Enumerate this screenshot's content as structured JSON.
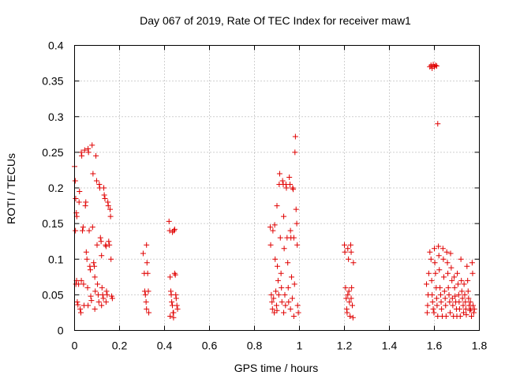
{
  "chart_data": {
    "type": "scatter",
    "title": "Day 067 of 2019, Rate Of TEC Index for receiver maw1",
    "xlabel": "GPS time / hours",
    "ylabel": "ROTI / TECUs",
    "xlim": [
      0,
      1.8
    ],
    "ylim": [
      0,
      0.4
    ],
    "grid": true,
    "marker": "plus",
    "color": "#e00000",
    "x_ticks": [
      {
        "v": 0,
        "label": "0"
      },
      {
        "v": 0.2,
        "label": "0.2"
      },
      {
        "v": 0.4,
        "label": "0.4"
      },
      {
        "v": 0.6,
        "label": "0.6"
      },
      {
        "v": 0.8,
        "label": "0.8"
      },
      {
        "v": 1.0,
        "label": "1"
      },
      {
        "v": 1.2,
        "label": "1.2"
      },
      {
        "v": 1.4,
        "label": "1.4"
      },
      {
        "v": 1.6,
        "label": "1.6"
      },
      {
        "v": 1.8,
        "label": "1.8"
      }
    ],
    "y_ticks": [
      {
        "v": 0,
        "label": "0"
      },
      {
        "v": 0.05,
        "label": "0.05"
      },
      {
        "v": 0.1,
        "label": "0.1"
      },
      {
        "v": 0.15,
        "label": "0.15"
      },
      {
        "v": 0.2,
        "label": "0.2"
      },
      {
        "v": 0.25,
        "label": "0.25"
      },
      {
        "v": 0.3,
        "label": "0.3"
      },
      {
        "v": 0.35,
        "label": "0.35"
      },
      {
        "v": 0.4,
        "label": "0.4"
      }
    ],
    "points": [
      [
        0.0,
        0.23
      ],
      [
        0.003,
        0.21
      ],
      [
        0.005,
        0.185
      ],
      [
        0.008,
        0.165
      ],
      [
        0.01,
        0.16
      ],
      [
        0.004,
        0.14
      ],
      [
        0.006,
        0.065
      ],
      [
        0.009,
        0.07
      ],
      [
        0.012,
        0.04
      ],
      [
        0.015,
        0.036
      ],
      [
        0.018,
        0.065
      ],
      [
        0.02,
        0.18
      ],
      [
        0.022,
        0.195
      ],
      [
        0.025,
        0.03
      ],
      [
        0.028,
        0.025
      ],
      [
        0.03,
        0.25
      ],
      [
        0.032,
        0.245
      ],
      [
        0.035,
        0.14
      ],
      [
        0.038,
        0.145
      ],
      [
        0.04,
        0.065
      ],
      [
        0.042,
        0.035
      ],
      [
        0.045,
        0.253
      ],
      [
        0.048,
        0.175
      ],
      [
        0.05,
        0.18
      ],
      [
        0.052,
        0.11
      ],
      [
        0.055,
        0.1
      ],
      [
        0.058,
        0.06
      ],
      [
        0.06,
        0.255
      ],
      [
        0.062,
        0.25
      ],
      [
        0.065,
        0.14
      ],
      [
        0.068,
        0.09
      ],
      [
        0.07,
        0.085
      ],
      [
        0.072,
        0.048
      ],
      [
        0.075,
        0.042
      ],
      [
        0.078,
        0.26
      ],
      [
        0.08,
        0.145
      ],
      [
        0.082,
        0.22
      ],
      [
        0.085,
        0.095
      ],
      [
        0.088,
        0.09
      ],
      [
        0.09,
        0.075
      ],
      [
        0.092,
        0.055
      ],
      [
        0.095,
        0.245
      ],
      [
        0.098,
        0.21
      ],
      [
        0.1,
        0.12
      ],
      [
        0.102,
        0.065
      ],
      [
        0.105,
        0.05
      ],
      [
        0.108,
        0.04
      ],
      [
        0.11,
        0.205
      ],
      [
        0.112,
        0.2
      ],
      [
        0.115,
        0.13
      ],
      [
        0.118,
        0.125
      ],
      [
        0.12,
        0.105
      ],
      [
        0.122,
        0.06
      ],
      [
        0.125,
        0.05
      ],
      [
        0.128,
        0.045
      ],
      [
        0.13,
        0.2
      ],
      [
        0.132,
        0.19
      ],
      [
        0.135,
        0.185
      ],
      [
        0.138,
        0.12
      ],
      [
        0.14,
        0.118
      ],
      [
        0.142,
        0.055
      ],
      [
        0.145,
        0.05
      ],
      [
        0.148,
        0.18
      ],
      [
        0.15,
        0.175
      ],
      [
        0.152,
        0.125
      ],
      [
        0.155,
        0.12
      ],
      [
        0.158,
        0.17
      ],
      [
        0.16,
        0.16
      ],
      [
        0.162,
        0.1
      ],
      [
        0.165,
        0.048
      ],
      [
        0.168,
        0.045
      ],
      [
        0.03,
        0.07
      ],
      [
        0.06,
        0.035
      ],
      [
        0.09,
        0.03
      ],
      [
        0.12,
        0.035
      ],
      [
        0.14,
        0.04
      ],
      [
        0.305,
        0.108
      ],
      [
        0.31,
        0.08
      ],
      [
        0.312,
        0.055
      ],
      [
        0.315,
        0.05
      ],
      [
        0.318,
        0.04
      ],
      [
        0.32,
        0.12
      ],
      [
        0.322,
        0.095
      ],
      [
        0.325,
        0.08
      ],
      [
        0.328,
        0.055
      ],
      [
        0.33,
        0.025
      ],
      [
        0.32,
        0.03
      ],
      [
        0.42,
        0.153
      ],
      [
        0.423,
        0.14
      ],
      [
        0.425,
        0.075
      ],
      [
        0.428,
        0.055
      ],
      [
        0.43,
        0.05
      ],
      [
        0.432,
        0.04
      ],
      [
        0.435,
        0.035
      ],
      [
        0.438,
        0.025
      ],
      [
        0.44,
        0.018
      ],
      [
        0.442,
        0.14
      ],
      [
        0.445,
        0.08
      ],
      [
        0.448,
        0.078
      ],
      [
        0.45,
        0.05
      ],
      [
        0.452,
        0.045
      ],
      [
        0.455,
        0.035
      ],
      [
        0.458,
        0.03
      ],
      [
        0.44,
        0.025
      ],
      [
        0.425,
        0.02
      ],
      [
        0.435,
        0.138
      ],
      [
        0.445,
        0.142
      ],
      [
        0.87,
        0.145
      ],
      [
        0.872,
        0.12
      ],
      [
        0.875,
        0.05
      ],
      [
        0.878,
        0.04
      ],
      [
        0.88,
        0.03
      ],
      [
        0.882,
        0.14
      ],
      [
        0.885,
        0.045
      ],
      [
        0.888,
        0.025
      ],
      [
        0.89,
        0.148
      ],
      [
        0.892,
        0.1
      ],
      [
        0.895,
        0.055
      ],
      [
        0.898,
        0.035
      ],
      [
        0.9,
        0.175
      ],
      [
        0.902,
        0.09
      ],
      [
        0.905,
        0.07
      ],
      [
        0.908,
        0.05
      ],
      [
        0.91,
        0.205
      ],
      [
        0.912,
        0.22
      ],
      [
        0.915,
        0.13
      ],
      [
        0.918,
        0.08
      ],
      [
        0.92,
        0.06
      ],
      [
        0.922,
        0.04
      ],
      [
        0.925,
        0.21
      ],
      [
        0.928,
        0.205
      ],
      [
        0.93,
        0.16
      ],
      [
        0.932,
        0.115
      ],
      [
        0.935,
        0.05
      ],
      [
        0.938,
        0.035
      ],
      [
        0.94,
        0.205
      ],
      [
        0.942,
        0.2
      ],
      [
        0.945,
        0.13
      ],
      [
        0.948,
        0.095
      ],
      [
        0.95,
        0.06
      ],
      [
        0.952,
        0.04
      ],
      [
        0.955,
        0.215
      ],
      [
        0.958,
        0.205
      ],
      [
        0.96,
        0.14
      ],
      [
        0.962,
        0.13
      ],
      [
        0.965,
        0.075
      ],
      [
        0.968,
        0.045
      ],
      [
        0.97,
        0.2
      ],
      [
        0.972,
        0.198
      ],
      [
        0.975,
        0.13
      ],
      [
        0.978,
        0.065
      ],
      [
        0.98,
        0.25
      ],
      [
        0.982,
        0.272
      ],
      [
        0.985,
        0.17
      ],
      [
        0.988,
        0.15
      ],
      [
        0.99,
        0.12
      ],
      [
        0.992,
        0.035
      ],
      [
        0.995,
        0.025
      ],
      [
        0.96,
        0.03
      ],
      [
        0.93,
        0.025
      ],
      [
        0.9,
        0.028
      ],
      [
        0.975,
        0.02
      ],
      [
        1.2,
        0.12
      ],
      [
        1.202,
        0.11
      ],
      [
        1.205,
        0.06
      ],
      [
        1.208,
        0.045
      ],
      [
        1.21,
        0.03
      ],
      [
        1.212,
        0.025
      ],
      [
        1.215,
        0.115
      ],
      [
        1.218,
        0.1
      ],
      [
        1.22,
        0.055
      ],
      [
        1.222,
        0.04
      ],
      [
        1.225,
        0.02
      ],
      [
        1.228,
        0.12
      ],
      [
        1.23,
        0.11
      ],
      [
        1.232,
        0.06
      ],
      [
        1.235,
        0.035
      ],
      [
        1.238,
        0.018
      ],
      [
        1.24,
        0.095
      ],
      [
        1.215,
        0.05
      ],
      [
        1.23,
        0.045
      ],
      [
        1.58,
        0.37
      ],
      [
        1.585,
        0.372
      ],
      [
        1.59,
        0.368
      ],
      [
        1.595,
        0.373
      ],
      [
        1.6,
        0.37
      ],
      [
        1.605,
        0.372
      ],
      [
        1.61,
        0.371
      ],
      [
        1.615,
        0.29
      ],
      [
        1.58,
        0.11
      ],
      [
        1.585,
        0.1
      ],
      [
        1.588,
        0.07
      ],
      [
        1.59,
        0.05
      ],
      [
        1.592,
        0.04
      ],
      [
        1.595,
        0.03
      ],
      [
        1.598,
        0.025
      ],
      [
        1.6,
        0.115
      ],
      [
        1.602,
        0.095
      ],
      [
        1.605,
        0.08
      ],
      [
        1.608,
        0.06
      ],
      [
        1.61,
        0.045
      ],
      [
        1.612,
        0.035
      ],
      [
        1.615,
        0.02
      ],
      [
        1.618,
        0.118
      ],
      [
        1.62,
        0.105
      ],
      [
        1.622,
        0.085
      ],
      [
        1.625,
        0.06
      ],
      [
        1.628,
        0.05
      ],
      [
        1.63,
        0.04
      ],
      [
        1.632,
        0.03
      ],
      [
        1.635,
        0.02
      ],
      [
        1.638,
        0.115
      ],
      [
        1.64,
        0.1
      ],
      [
        1.642,
        0.075
      ],
      [
        1.645,
        0.055
      ],
      [
        1.648,
        0.045
      ],
      [
        1.65,
        0.035
      ],
      [
        1.652,
        0.02
      ],
      [
        1.655,
        0.11
      ],
      [
        1.658,
        0.095
      ],
      [
        1.66,
        0.08
      ],
      [
        1.662,
        0.06
      ],
      [
        1.665,
        0.05
      ],
      [
        1.668,
        0.04
      ],
      [
        1.67,
        0.025
      ],
      [
        1.672,
        0.108
      ],
      [
        1.675,
        0.088
      ],
      [
        1.678,
        0.07
      ],
      [
        1.68,
        0.045
      ],
      [
        1.682,
        0.035
      ],
      [
        1.685,
        0.02
      ],
      [
        1.688,
        0.075
      ],
      [
        1.69,
        0.06
      ],
      [
        1.692,
        0.048
      ],
      [
        1.695,
        0.04
      ],
      [
        1.698,
        0.03
      ],
      [
        1.7,
        0.02
      ],
      [
        1.702,
        0.08
      ],
      [
        1.705,
        0.065
      ],
      [
        1.708,
        0.05
      ],
      [
        1.71,
        0.04
      ],
      [
        1.712,
        0.03
      ],
      [
        1.715,
        0.02
      ],
      [
        1.718,
        0.1
      ],
      [
        1.72,
        0.07
      ],
      [
        1.722,
        0.055
      ],
      [
        1.725,
        0.045
      ],
      [
        1.728,
        0.035
      ],
      [
        1.73,
        0.025
      ],
      [
        1.732,
        0.065
      ],
      [
        1.735,
        0.05
      ],
      [
        1.738,
        0.04
      ],
      [
        1.74,
        0.03
      ],
      [
        1.742,
        0.022
      ],
      [
        1.745,
        0.09
      ],
      [
        1.748,
        0.07
      ],
      [
        1.75,
        0.055
      ],
      [
        1.752,
        0.045
      ],
      [
        1.755,
        0.035
      ],
      [
        1.758,
        0.028
      ],
      [
        1.76,
        0.04
      ],
      [
        1.762,
        0.03
      ],
      [
        1.765,
        0.02
      ],
      [
        1.768,
        0.095
      ],
      [
        1.77,
        0.08
      ],
      [
        1.772,
        0.035
      ],
      [
        1.775,
        0.025
      ],
      [
        1.778,
        0.03
      ],
      [
        1.575,
        0.08
      ],
      [
        1.572,
        0.05
      ],
      [
        1.57,
        0.035
      ],
      [
        1.568,
        0.025
      ],
      [
        1.565,
        0.065
      ]
    ]
  }
}
